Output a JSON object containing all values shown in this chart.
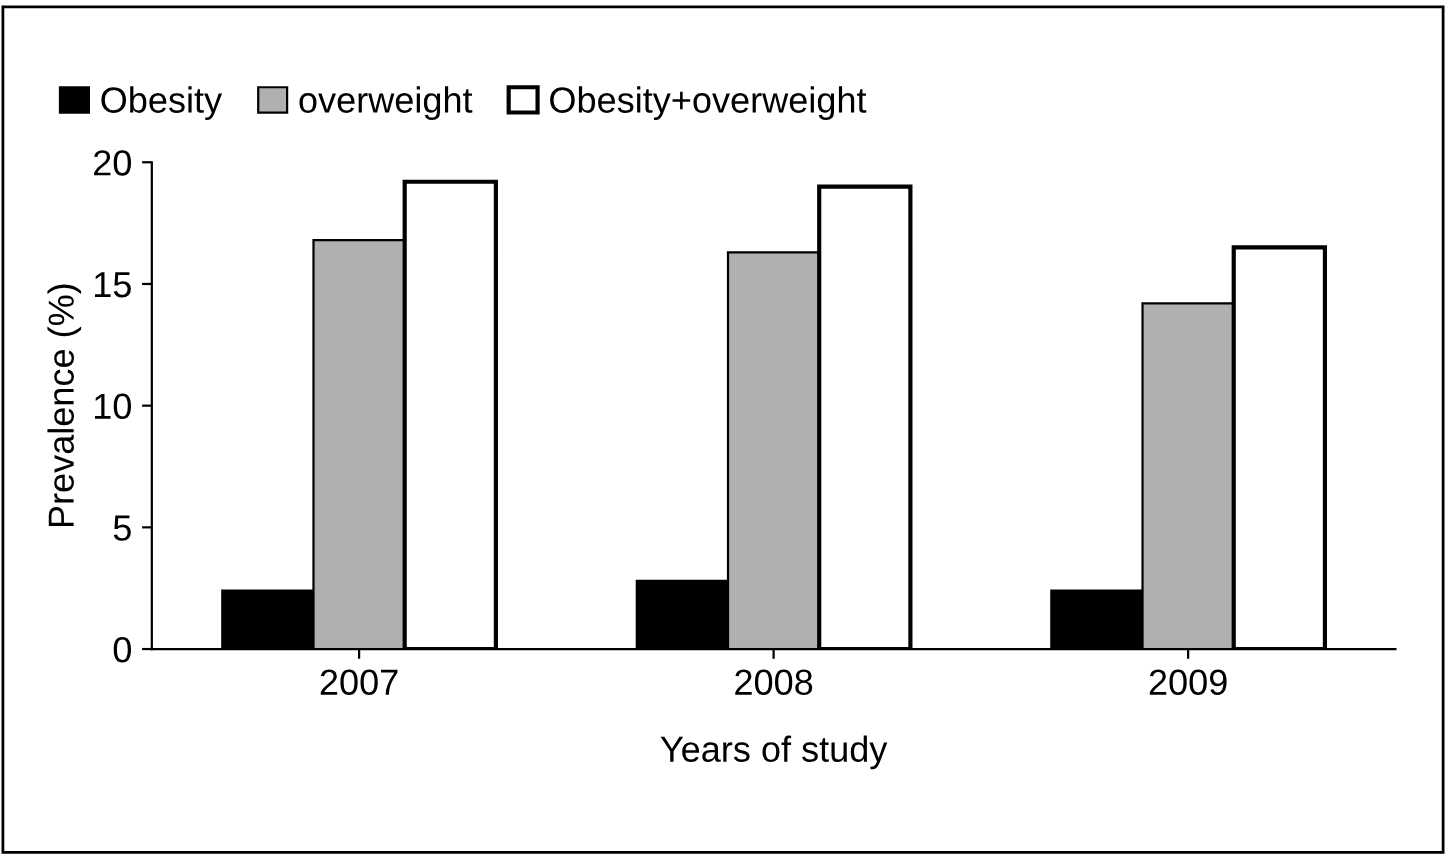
{
  "chart_data": {
    "type": "bar",
    "xlabel": "Years of study",
    "ylabel": "Prevalence (%)",
    "categories": [
      "2007",
      "2008",
      "2009"
    ],
    "series": [
      {
        "name": "Obesity",
        "color": "#000000",
        "values": [
          2.4,
          2.8,
          2.4
        ]
      },
      {
        "name": "overweight",
        "color": "#b0b0b0",
        "values": [
          16.8,
          16.3,
          14.2
        ]
      },
      {
        "name": "Obesity+overweight",
        "color": "#ffffff",
        "values": [
          19.2,
          19.0,
          16.5
        ]
      }
    ],
    "ylim": [
      0,
      20
    ],
    "yticks": [
      0,
      5,
      10,
      15,
      20
    ],
    "grid": false,
    "legend": "top"
  }
}
